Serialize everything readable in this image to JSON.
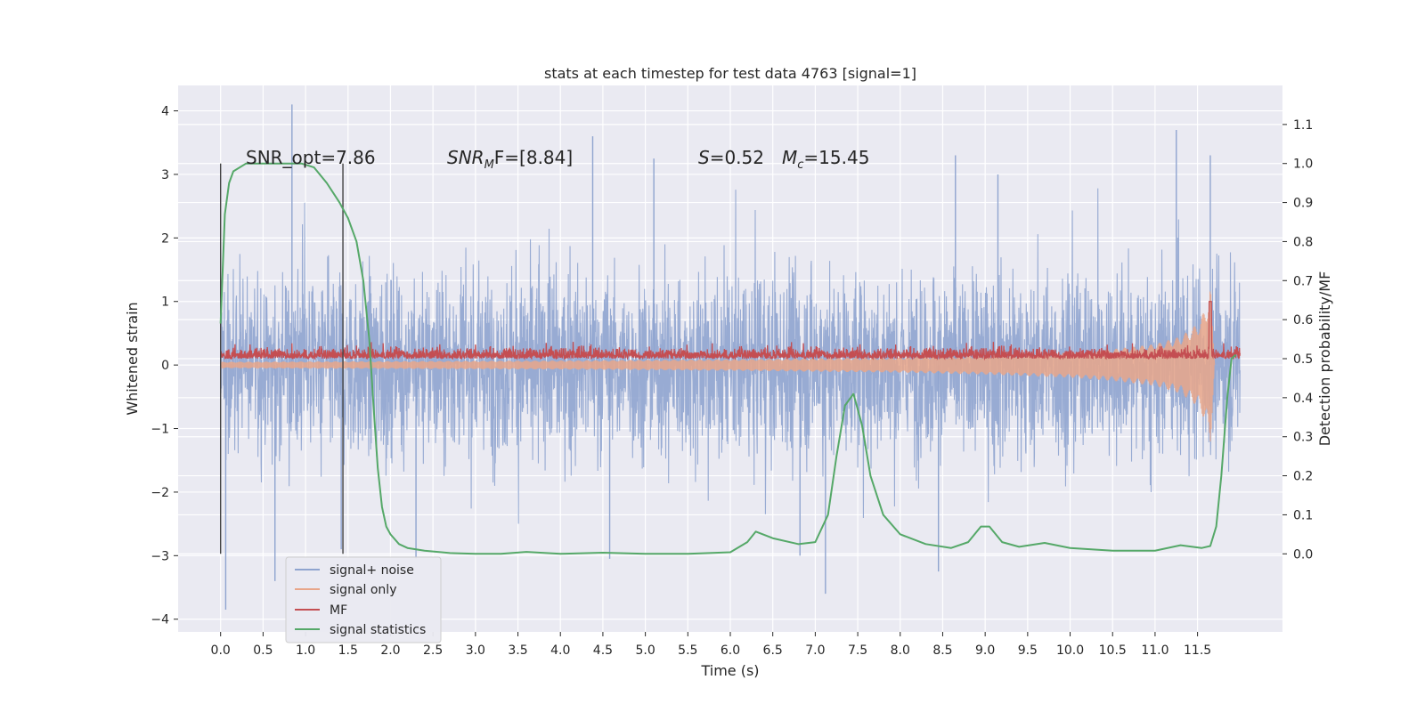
{
  "chart_data": {
    "type": "line",
    "title": "stats at each timestep for test data 4763 [signal=1]",
    "xlabel": "Time (s)",
    "ylabel": "Whitened strain",
    "ylabel_right": "Detection probability/MF",
    "xlim": [
      -0.5,
      12.5
    ],
    "ylim": [
      -4.2,
      4.4
    ],
    "ylim_right": [
      -0.2,
      1.2
    ],
    "xticks": [
      "0.0",
      "0.5",
      "1.0",
      "1.5",
      "2.0",
      "2.5",
      "3.0",
      "3.5",
      "4.0",
      "4.5",
      "5.0",
      "5.5",
      "6.0",
      "6.5",
      "7.0",
      "7.5",
      "8.0",
      "8.5",
      "9.0",
      "9.5",
      "10.0",
      "10.5",
      "11.0",
      "11.5"
    ],
    "yticks": [
      "−4",
      "−3",
      "−2",
      "−1",
      "0",
      "1",
      "2",
      "3",
      "4"
    ],
    "yticks_right": [
      "0.0",
      "0.1",
      "0.2",
      "0.3",
      "0.4",
      "0.5",
      "0.6",
      "0.7",
      "0.8",
      "0.9",
      "1.0",
      "1.1"
    ],
    "grid": true,
    "legend_position": "lower-left",
    "annotations": {
      "snr_opt": "SNR_opt=7.86",
      "snr_mf_prefix": "SNR",
      "snr_mf_sub": "M",
      "snr_mf_suffix": "F=[8.84]",
      "s_stat_name": "S",
      "s_stat_value": "=0.52",
      "mc_name": "M",
      "mc_sub": "c",
      "mc_value": "=15.45"
    },
    "markers": [
      0.0,
      1.44
    ],
    "series": [
      {
        "name": "signal+ noise",
        "color": "#8fa4cf",
        "axis": "left",
        "description_values": {
          "t_start": 0.0,
          "t_end": 12.0,
          "typical_abs": 1.4,
          "peak_max": 4.1,
          "peak_min": -3.85
        }
      },
      {
        "name": "signal only",
        "color": "#e8a68a",
        "axis": "left",
        "envelope": {
          "t": [
            0.0,
            2.0,
            4.0,
            6.0,
            8.0,
            9.0,
            10.0,
            10.5,
            11.0,
            11.3,
            11.5,
            11.6,
            11.65,
            11.7
          ],
          "amp": [
            0.05,
            0.06,
            0.07,
            0.09,
            0.12,
            0.15,
            0.2,
            0.25,
            0.33,
            0.45,
            0.65,
            0.9,
            1.3,
            0.0
          ]
        }
      },
      {
        "name": "MF",
        "color": "#c44e52",
        "axis": "left",
        "description_values": {
          "baseline": 0.1,
          "typical_max": 0.35,
          "spike_t": 11.65,
          "spike_max": 1.0
        }
      },
      {
        "name": "signal statistics",
        "color": "#55a868",
        "axis": "right",
        "x": [
          0.0,
          0.05,
          0.1,
          0.15,
          0.3,
          0.5,
          0.8,
          0.95,
          1.1,
          1.25,
          1.4,
          1.5,
          1.6,
          1.68,
          1.75,
          1.8,
          1.85,
          1.9,
          1.95,
          2.0,
          2.1,
          2.2,
          2.4,
          2.7,
          3.0,
          3.3,
          3.6,
          4.0,
          4.5,
          5.0,
          5.5,
          6.0,
          6.2,
          6.3,
          6.5,
          6.8,
          7.0,
          7.15,
          7.25,
          7.35,
          7.45,
          7.55,
          7.65,
          7.8,
          8.0,
          8.3,
          8.6,
          8.8,
          8.95,
          9.05,
          9.2,
          9.4,
          9.7,
          10.0,
          10.5,
          11.0,
          11.3,
          11.55,
          11.65,
          11.72,
          11.78,
          11.85,
          11.9,
          11.95
        ],
        "y": [
          0.59,
          0.87,
          0.95,
          0.98,
          1.0,
          1.0,
          1.0,
          1.0,
          0.99,
          0.95,
          0.9,
          0.86,
          0.8,
          0.7,
          0.55,
          0.38,
          0.22,
          0.12,
          0.07,
          0.05,
          0.025,
          0.015,
          0.008,
          0.002,
          0.0,
          0.0,
          0.005,
          0.0,
          0.003,
          0.0,
          0.0,
          0.004,
          0.03,
          0.057,
          0.04,
          0.025,
          0.03,
          0.1,
          0.25,
          0.38,
          0.41,
          0.33,
          0.2,
          0.1,
          0.05,
          0.025,
          0.015,
          0.03,
          0.07,
          0.07,
          0.03,
          0.018,
          0.028,
          0.015,
          0.008,
          0.008,
          0.022,
          0.015,
          0.02,
          0.07,
          0.2,
          0.4,
          0.5,
          0.51
        ]
      }
    ]
  }
}
